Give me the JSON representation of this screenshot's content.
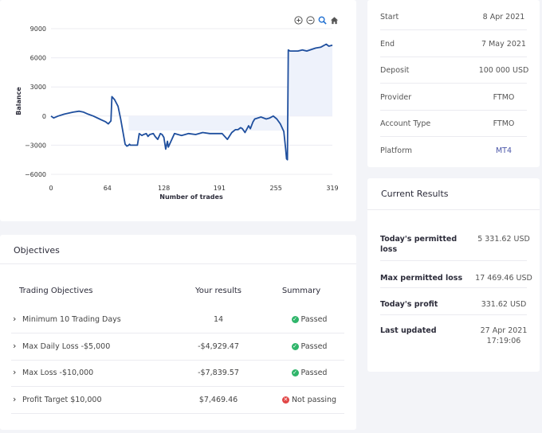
{
  "chart": {
    "toolbar": [
      "zoom-in-icon",
      "zoom-out-icon",
      "zoom-select-icon",
      "reset-home-icon"
    ],
    "accent": "#1f4f9e",
    "fill": "#eef2fb"
  },
  "chart_data": {
    "type": "line",
    "title": "",
    "xlabel": "Number of trades",
    "ylabel": "Balance",
    "xlim": [
      0,
      319
    ],
    "ylim": [
      -7000,
      9000
    ],
    "xticks": [
      0,
      64,
      128,
      191,
      255,
      319
    ],
    "yticks": [
      9000,
      6000,
      3000,
      0,
      -3000,
      -6000
    ],
    "xtick_labels": [
      "0",
      "64",
      "128",
      "191",
      "255",
      "319"
    ],
    "ytick_labels": [
      "9000",
      "6000",
      "3000",
      "0",
      "−3000",
      "−6000"
    ],
    "grid": "y-only",
    "series": [
      {
        "x": [
          0,
          3,
          8,
          15,
          25,
          32,
          37,
          42,
          48,
          55,
          62,
          65,
          68,
          69,
          70,
          72,
          76,
          79,
          84,
          85,
          86,
          88,
          89,
          90,
          92,
          95,
          98,
          100,
          103,
          105,
          108,
          110,
          112,
          116,
          118,
          121,
          124,
          126,
          128,
          130,
          132,
          133,
          140,
          148,
          156,
          164,
          172,
          180,
          188,
          194,
          200,
          205,
          209,
          212,
          215,
          217,
          220,
          224,
          226,
          229,
          231,
          238,
          244,
          248,
          252,
          256,
          260,
          264,
          266,
          267,
          268,
          269,
          271,
          275,
          280,
          285,
          290,
          300,
          306,
          312,
          315,
          319
        ],
        "y": [
          0,
          -200,
          0,
          200,
          400,
          500,
          400,
          200,
          0,
          -300,
          -600,
          -800,
          -500,
          2000,
          1900,
          1700,
          1000,
          -300,
          -2900,
          -3000,
          -3100,
          -3000,
          -2900,
          -3000,
          -3000,
          -3000,
          -3000,
          -1800,
          -2000,
          -1900,
          -1800,
          -2100,
          -1900,
          -1800,
          -2100,
          -2400,
          -1800,
          -1900,
          -2200,
          -3400,
          -2600,
          -3200,
          -1800,
          -2000,
          -1800,
          -1900,
          -1700,
          -1800,
          -1800,
          -1800,
          -2400,
          -1700,
          -1400,
          -1400,
          -1200,
          -1300,
          -1700,
          -1000,
          -1300,
          -600,
          -300,
          -100,
          -300,
          -200,
          0,
          -300,
          -800,
          -1600,
          -3400,
          -4400,
          -4500,
          6800,
          6700,
          6700,
          6700,
          6800,
          6700,
          7000,
          7100,
          7400,
          7200,
          7300
        ]
      }
    ]
  },
  "objectives": {
    "title": "Objectives",
    "headers": [
      "Trading Objectives",
      "Your results",
      "Summary"
    ],
    "rows": [
      {
        "name": "Minimum 10 Trading Days",
        "result": "14",
        "summary": "Passed",
        "status": "ok"
      },
      {
        "name": "Max Daily Loss -$5,000",
        "result": "-$4,929.47",
        "summary": "Passed",
        "status": "ok"
      },
      {
        "name": "Max Loss -$10,000",
        "result": "-$7,839.57",
        "summary": "Passed",
        "status": "ok"
      },
      {
        "name": "Profit Target $10,000",
        "result": "$7,469.46",
        "summary": "Not passing",
        "status": "bad"
      }
    ],
    "colors": {
      "ok": "#2fb56a",
      "bad": "#e14545"
    }
  },
  "account": {
    "rows": [
      {
        "key": "Start",
        "value": "8 Apr 2021"
      },
      {
        "key": "End",
        "value": "7 May 2021"
      },
      {
        "key": "Deposit",
        "value": "100 000 USD"
      },
      {
        "key": "Provider",
        "value": "FTMO"
      },
      {
        "key": "Account Type",
        "value": "FTMO"
      },
      {
        "key": "Platform",
        "value": "MT4"
      }
    ]
  },
  "results": {
    "title": "Current Results",
    "todays_permitted_loss_label": "Today's permitted loss",
    "todays_permitted_loss_value": "5 331.62 USD",
    "max_permitted_loss_label": "Max permitted loss",
    "max_permitted_loss_value": "17 469.46 USD",
    "todays_profit_label": "Today's profit",
    "todays_profit_value": "331.62 USD",
    "last_updated_label": "Last updated",
    "last_updated_date": "27 Apr 2021",
    "last_updated_time": "17:19:06"
  }
}
